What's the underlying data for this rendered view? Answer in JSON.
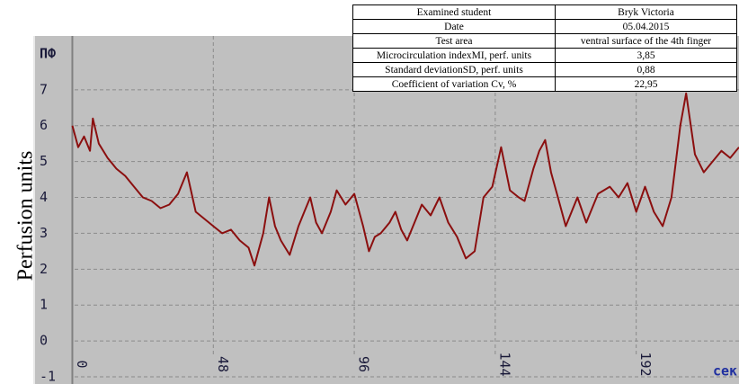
{
  "chart_data": {
    "type": "line",
    "ylabel": "Perfusion units",
    "unit_label": "ПФ",
    "xunit_label": "сек",
    "x": [
      0,
      2,
      4,
      6,
      7,
      9,
      12,
      15,
      18,
      21,
      24,
      27,
      30,
      33,
      36,
      39,
      42,
      45,
      48,
      51,
      54,
      57,
      60,
      62,
      65,
      67,
      69,
      71,
      74,
      77,
      79,
      81,
      83,
      85,
      88,
      90,
      93,
      96,
      99,
      101,
      103,
      105,
      108,
      110,
      112,
      114,
      117,
      119,
      122,
      125,
      128,
      131,
      134,
      137,
      140,
      143,
      146,
      149,
      152,
      154,
      157,
      159,
      161,
      163,
      165,
      168,
      170,
      172,
      175,
      179,
      183,
      186,
      189,
      192,
      195,
      198,
      201,
      204,
      207,
      209,
      212,
      215,
      218,
      221,
      224,
      227
    ],
    "values": [
      6.0,
      5.4,
      5.7,
      5.3,
      6.2,
      5.5,
      5.1,
      4.8,
      4.6,
      4.3,
      4.0,
      3.9,
      3.7,
      3.8,
      4.1,
      4.7,
      3.6,
      3.4,
      3.2,
      3.0,
      3.1,
      2.8,
      2.6,
      2.1,
      3.0,
      4.0,
      3.2,
      2.8,
      2.4,
      3.2,
      3.6,
      4.0,
      3.3,
      3.0,
      3.6,
      4.2,
      3.8,
      4.1,
      3.2,
      2.5,
      2.9,
      3.0,
      3.3,
      3.6,
      3.1,
      2.8,
      3.4,
      3.8,
      3.5,
      4.0,
      3.3,
      2.9,
      2.3,
      2.5,
      4.0,
      4.3,
      5.4,
      4.2,
      4.0,
      3.9,
      4.8,
      5.3,
      5.6,
      4.7,
      4.1,
      3.2,
      3.6,
      4.0,
      3.3,
      4.1,
      4.3,
      4.0,
      4.4,
      3.6,
      4.3,
      3.6,
      3.2,
      4.0,
      6.0,
      6.9,
      5.2,
      4.7,
      5.0,
      5.3,
      5.1,
      5.4
    ],
    "color": "#8b0f0f",
    "xlim": [
      -13,
      227
    ],
    "ylim": [
      -1.2,
      8.5
    ],
    "xticks": [
      0,
      48,
      96,
      144,
      192
    ],
    "yticks": [
      -1,
      0,
      1,
      2,
      3,
      4,
      5,
      6,
      7
    ],
    "grid": true
  },
  "table": {
    "rows": [
      [
        "Examined student",
        "Bryk Victoria"
      ],
      [
        "Date",
        "05.04.2015"
      ],
      [
        "Test area",
        "ventral surface of the 4th finger"
      ],
      [
        "Microcirculation indexMI, perf. units",
        "3,85"
      ],
      [
        "Standard deviationSD,  perf. units",
        "0,88"
      ],
      [
        "Coefficient of variation Cv, %",
        "22,95"
      ]
    ]
  }
}
